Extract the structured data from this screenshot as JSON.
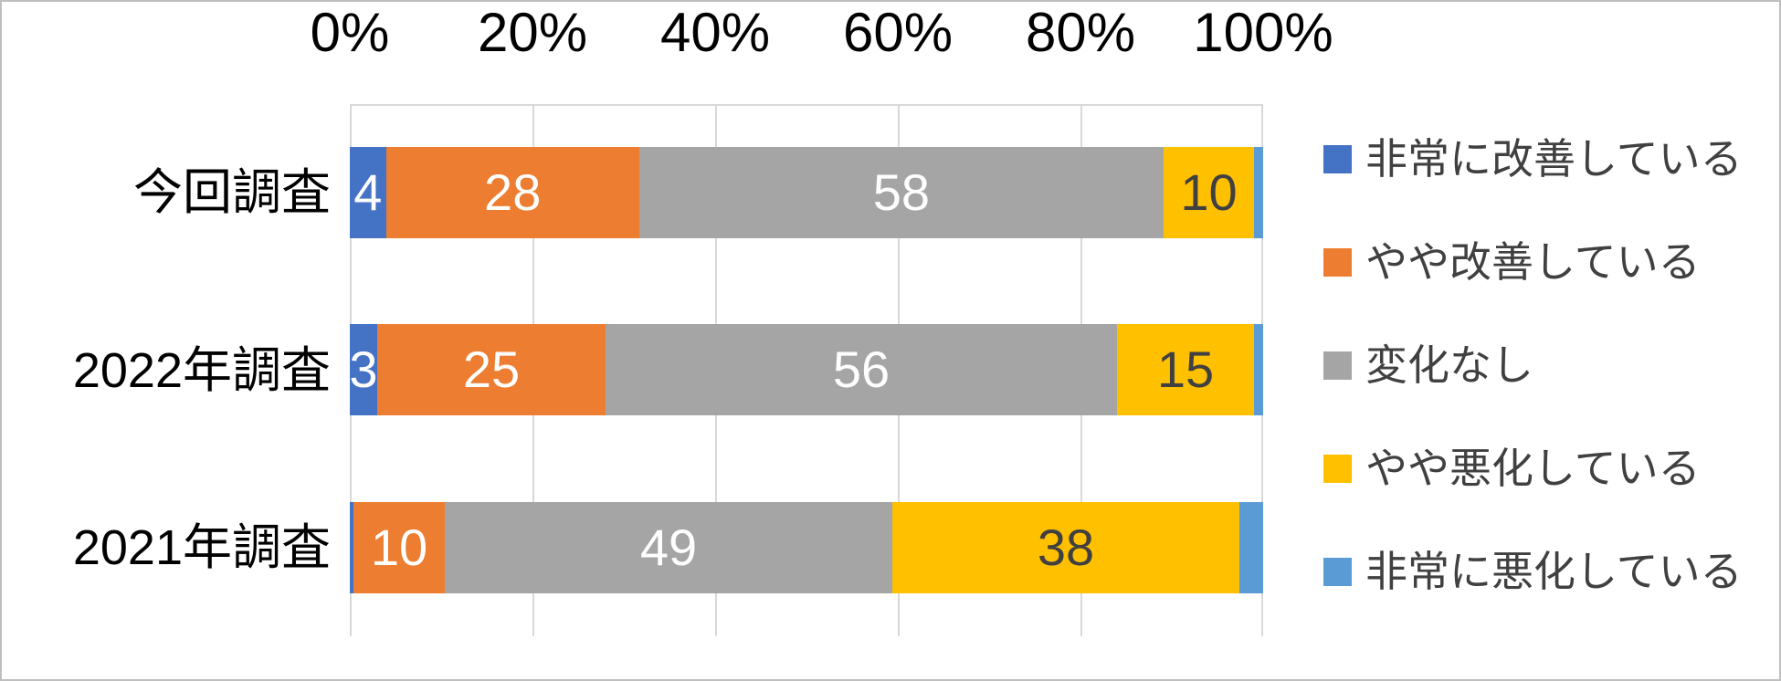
{
  "chart_data": {
    "type": "bar",
    "subtype": "stacked-horizontal-100percent",
    "title": "",
    "categories": [
      "今回調査",
      "2022年調査",
      "2021年調査"
    ],
    "series": [
      {
        "name": "非常に改善している",
        "color": "#4472C4",
        "label_color": "#FFFFFF",
        "values": [
          4,
          3,
          0.4
        ],
        "labels": [
          "4",
          "3",
          ""
        ]
      },
      {
        "name": "やや改善している",
        "color": "#ED7D31",
        "label_color": "#FFFFFF",
        "values": [
          28,
          25,
          10
        ],
        "labels": [
          "28",
          "25",
          "10"
        ]
      },
      {
        "name": "変化なし",
        "color": "#A5A5A5",
        "label_color": "#FFFFFF",
        "values": [
          58,
          56,
          49
        ],
        "labels": [
          "58",
          "56",
          "49"
        ]
      },
      {
        "name": "やや悪化している",
        "color": "#FFC000",
        "label_color": "#404040",
        "values": [
          10,
          15,
          38
        ],
        "labels": [
          "10",
          "15",
          "38"
        ]
      },
      {
        "name": "非常に悪化している",
        "color": "#5B9BD5",
        "label_color": "#FFFFFF",
        "values": [
          1,
          1,
          2.6
        ],
        "labels": [
          "",
          "",
          ""
        ]
      }
    ],
    "x_ticks": [
      "0%",
      "20%",
      "40%",
      "60%",
      "80%",
      "100%"
    ],
    "axis_range": [
      0,
      100
    ],
    "grid": true,
    "legend_position": "right",
    "colors": {
      "gridline": "#D9D9D9",
      "frame_border": "#BFBFBF",
      "axis_text": "#000000",
      "legend_text": "#404040",
      "background": "#FFFFFF"
    }
  }
}
